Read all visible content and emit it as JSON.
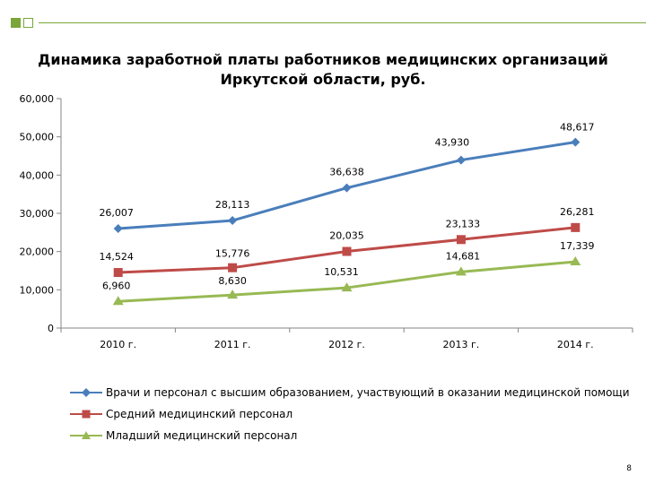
{
  "slide": {
    "page_number": "8"
  },
  "chart_data": {
    "type": "line",
    "title_lines": [
      "Динамика заработной платы работников медицинских организаций",
      "Иркутской области, руб."
    ],
    "categories": [
      "2010 г.",
      "2011 г.",
      "2012 г.",
      "2013 г.",
      "2014 г."
    ],
    "ylim": [
      0,
      60000
    ],
    "ytick_labels": [
      "0",
      "10,000",
      "20,000",
      "30,000",
      "40,000",
      "50,000",
      "60,000"
    ],
    "grid": false,
    "legend_position": "bottom",
    "series": [
      {
        "name": "Врачи и персонал с высшим образованием, участвующий в оказании медицинской помощи",
        "values": [
          26007,
          28113,
          36638,
          43930,
          48617
        ],
        "labels": [
          "26,007",
          "28,113",
          "36,638",
          "43,930",
          "48,617"
        ],
        "color": "#4a7ebb",
        "marker": "diamond"
      },
      {
        "name": "Средний медицинский персонал",
        "values": [
          14524,
          15776,
          20035,
          23133,
          26281
        ],
        "labels": [
          "14,524",
          "15,776",
          "20,035",
          "23,133",
          "26,281"
        ],
        "color": "#be4b48",
        "marker": "square"
      },
      {
        "name": "Младший медицинский персонал",
        "values": [
          6960,
          8630,
          10531,
          14681,
          17339
        ],
        "labels": [
          "6,960",
          "8,630",
          "10,531",
          "14,681",
          "17,339"
        ],
        "color": "#98b954",
        "marker": "triangle"
      }
    ]
  }
}
